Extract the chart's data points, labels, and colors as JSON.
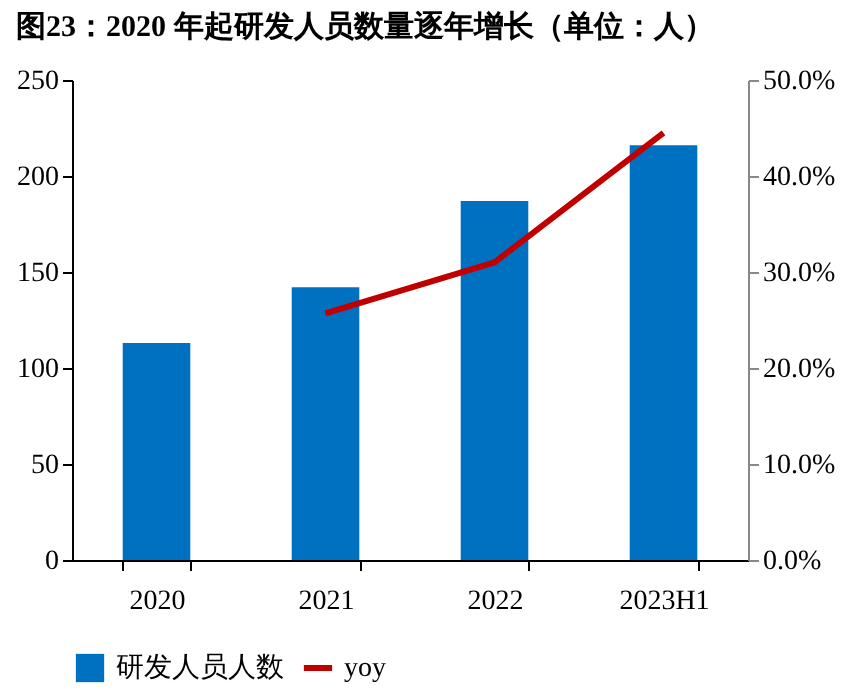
{
  "chart_data": {
    "type": "bar",
    "title": "图23：2020 年起研发人员数量逐年增长（单位：人）",
    "categories": [
      "2020",
      "2021",
      "2022",
      "2023H1"
    ],
    "series": [
      {
        "name": "研发人员人数",
        "color": "#0070c0",
        "values": [
          113,
          142,
          187,
          216
        ]
      },
      {
        "name": "yoy",
        "type": "line",
        "color": "#c00000",
        "axis": "y2",
        "values": [
          null,
          25.7,
          31.0,
          44.5
        ]
      }
    ],
    "ylim": [
      0,
      250
    ],
    "yticks": [
      0,
      50,
      100,
      150,
      200,
      250
    ],
    "y2lim": [
      0,
      50
    ],
    "y2ticks": [
      {
        "value": 0,
        "label": "0.0%"
      },
      {
        "value": 10,
        "label": "10.0%"
      },
      {
        "value": 20,
        "label": "20.0%"
      },
      {
        "value": 30,
        "label": "30.0%"
      },
      {
        "value": 40,
        "label": "40.0%"
      },
      {
        "value": 50,
        "label": "50.0%"
      }
    ],
    "legend": "bottom",
    "grid": false
  }
}
